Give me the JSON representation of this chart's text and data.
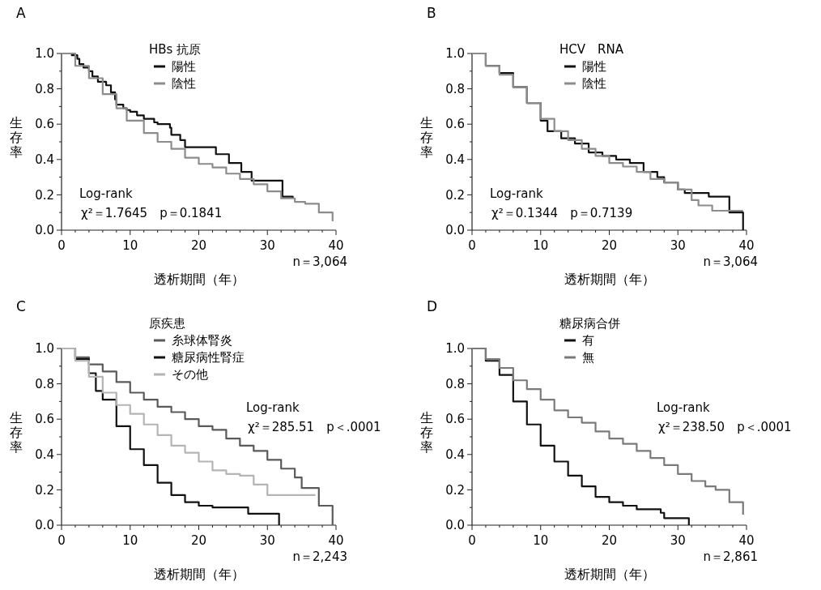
{
  "chart_data": [
    {
      "type": "step",
      "title": "A",
      "legend_title": "HBs 抗原",
      "xlabel": "透析期間（年）",
      "ylabel": "生存率",
      "xlim": [
        0,
        40
      ],
      "ylim": [
        0,
        1
      ],
      "legend": "top",
      "grid": false,
      "xticks": [
        0,
        {
          "value": 2,
          "label": null
        },
        {
          "value": 4,
          "label": null
        },
        {
          "value": 6,
          "label": null
        },
        {
          "value": 8,
          "label": null
        },
        10,
        {
          "value": 12,
          "label": null
        },
        {
          "value": 14,
          "label": null
        },
        {
          "value": 16,
          "label": null
        },
        {
          "value": 18,
          "label": null
        },
        20,
        {
          "value": 22,
          "label": null
        },
        {
          "value": 24,
          "label": null
        },
        {
          "value": 26,
          "label": null
        },
        {
          "value": 28,
          "label": null
        },
        30,
        {
          "value": 32,
          "label": null
        },
        {
          "value": 34,
          "label": null
        },
        {
          "value": 36,
          "label": null
        },
        {
          "value": 38,
          "label": null
        },
        40
      ],
      "yticks": [
        {
          "value": 0,
          "label": "0.0"
        },
        {
          "value": 0.1,
          "label": null
        },
        0.2,
        {
          "value": 0.3,
          "label": null
        },
        0.4,
        {
          "value": 0.5,
          "label": null
        },
        0.6,
        {
          "value": 0.7,
          "label": null
        },
        0.8,
        {
          "value": 0.9,
          "label": null
        },
        {
          "value": 1,
          "label": "1.0"
        }
      ],
      "annotations": [
        "Log-rank",
        "χ²＝1.7645　p＝0.1841",
        "n＝3,064"
      ],
      "series": [
        {
          "name": "陽性",
          "color": "#111111",
          "x": [
            0,
            1.5,
            2.3,
            2.6,
            3.2,
            4,
            4.5,
            5.3,
            6.5,
            7.2,
            7.8,
            8,
            9,
            9.5,
            10,
            11,
            12,
            13.5,
            14,
            15.8,
            16,
            17.3,
            18,
            22.5,
            24.4,
            26.2,
            27.7,
            32.2,
            33.7
          ],
          "values": [
            1,
            0.99,
            0.97,
            0.94,
            0.92,
            0.9,
            0.87,
            0.84,
            0.82,
            0.78,
            0.74,
            0.71,
            0.69,
            0.68,
            0.67,
            0.65,
            0.63,
            0.61,
            0.6,
            0.58,
            0.54,
            0.51,
            0.47,
            0.43,
            0.38,
            0.33,
            0.28,
            0.19,
            0.18
          ]
        },
        {
          "name": "陰性",
          "color": "#8c8c8c",
          "x": [
            0,
            2,
            4,
            6,
            8,
            9.5,
            12,
            14,
            16,
            18,
            20,
            22,
            24,
            26,
            28,
            30,
            32,
            34,
            35.5,
            37.5,
            39.5
          ],
          "values": [
            1,
            0.93,
            0.86,
            0.77,
            0.69,
            0.62,
            0.55,
            0.5,
            0.46,
            0.41,
            0.375,
            0.355,
            0.32,
            0.29,
            0.26,
            0.22,
            0.18,
            0.16,
            0.15,
            0.1,
            0.05
          ]
        }
      ]
    },
    {
      "type": "step",
      "title": "B",
      "legend_title": "HCV　RNA",
      "xlabel": "透析期間（年）",
      "ylabel": "生存率",
      "xlim": [
        0,
        40
      ],
      "ylim": [
        0,
        1
      ],
      "legend": "top",
      "grid": false,
      "xticks": [
        0,
        {
          "value": 2,
          "label": null
        },
        {
          "value": 4,
          "label": null
        },
        {
          "value": 6,
          "label": null
        },
        {
          "value": 8,
          "label": null
        },
        10,
        {
          "value": 12,
          "label": null
        },
        {
          "value": 14,
          "label": null
        },
        {
          "value": 16,
          "label": null
        },
        {
          "value": 18,
          "label": null
        },
        20,
        {
          "value": 22,
          "label": null
        },
        {
          "value": 24,
          "label": null
        },
        {
          "value": 26,
          "label": null
        },
        {
          "value": 28,
          "label": null
        },
        30,
        {
          "value": 32,
          "label": null
        },
        {
          "value": 34,
          "label": null
        },
        {
          "value": 36,
          "label": null
        },
        {
          "value": 38,
          "label": null
        },
        40
      ],
      "yticks": [
        {
          "value": 0,
          "label": "0.0"
        },
        {
          "value": 0.1,
          "label": null
        },
        0.2,
        {
          "value": 0.3,
          "label": null
        },
        0.4,
        {
          "value": 0.5,
          "label": null
        },
        0.6,
        {
          "value": 0.7,
          "label": null
        },
        0.8,
        {
          "value": 0.9,
          "label": null
        },
        {
          "value": 1,
          "label": "1.0"
        }
      ],
      "annotations": [
        "Log-rank",
        "χ²＝0.1344　p＝0.7139",
        "n＝3,064"
      ],
      "series": [
        {
          "name": "陽性",
          "color": "#111111",
          "x": [
            0,
            2,
            4,
            6,
            8,
            10,
            11,
            13,
            15,
            17,
            19,
            21,
            23,
            25,
            27,
            28,
            30,
            31,
            34.5,
            37.5,
            39.5
          ],
          "values": [
            1,
            0.93,
            0.89,
            0.81,
            0.72,
            0.62,
            0.56,
            0.52,
            0.49,
            0.44,
            0.42,
            0.4,
            0.38,
            0.33,
            0.3,
            0.27,
            0.23,
            0.21,
            0.19,
            0.1,
            0
          ]
        },
        {
          "name": "陰性",
          "color": "#8c8c8c",
          "x": [
            0,
            2,
            4,
            6,
            8,
            10,
            12,
            14,
            16,
            18,
            20,
            22,
            24,
            26,
            28,
            30,
            32,
            33,
            35,
            39.5
          ],
          "values": [
            1,
            0.93,
            0.88,
            0.81,
            0.72,
            0.63,
            0.56,
            0.51,
            0.46,
            0.42,
            0.38,
            0.36,
            0.33,
            0.29,
            0.27,
            0.23,
            0.17,
            0.14,
            0.11,
            0.11
          ]
        }
      ]
    },
    {
      "type": "step",
      "title": "C",
      "legend_title": "原疾患",
      "xlabel": "透析期間（年）",
      "ylabel": "生存率",
      "xlim": [
        0,
        40
      ],
      "ylim": [
        0,
        1
      ],
      "legend": "top",
      "grid": false,
      "xticks": [
        0,
        {
          "value": 2,
          "label": null
        },
        {
          "value": 4,
          "label": null
        },
        {
          "value": 6,
          "label": null
        },
        {
          "value": 8,
          "label": null
        },
        10,
        {
          "value": 12,
          "label": null
        },
        {
          "value": 14,
          "label": null
        },
        {
          "value": 16,
          "label": null
        },
        {
          "value": 18,
          "label": null
        },
        20,
        {
          "value": 22,
          "label": null
        },
        {
          "value": 24,
          "label": null
        },
        {
          "value": 26,
          "label": null
        },
        {
          "value": 28,
          "label": null
        },
        30,
        {
          "value": 32,
          "label": null
        },
        {
          "value": 34,
          "label": null
        },
        {
          "value": 36,
          "label": null
        },
        {
          "value": 38,
          "label": null
        },
        40
      ],
      "yticks": [
        {
          "value": 0,
          "label": "0.0"
        },
        {
          "value": 0.1,
          "label": null
        },
        0.2,
        {
          "value": 0.3,
          "label": null
        },
        0.4,
        {
          "value": 0.5,
          "label": null
        },
        0.6,
        {
          "value": 0.7,
          "label": null
        },
        0.8,
        {
          "value": 0.9,
          "label": null
        },
        {
          "value": 1,
          "label": "1.0"
        }
      ],
      "annotations": [
        "Log-rank",
        "χ²＝285.51　p＜.0001",
        "n＝2,243"
      ],
      "series": [
        {
          "name": "糸球体腎炎",
          "color": "#5a5a5a",
          "x": [
            0,
            2,
            4,
            6,
            8,
            10,
            12,
            14,
            16,
            18,
            20,
            22,
            24,
            26,
            28,
            30,
            32,
            34,
            35,
            37.5,
            39.5
          ],
          "values": [
            1,
            0.95,
            0.91,
            0.87,
            0.81,
            0.75,
            0.71,
            0.67,
            0.64,
            0.6,
            0.56,
            0.54,
            0.49,
            0.45,
            0.42,
            0.37,
            0.32,
            0.27,
            0.21,
            0.11,
            0
          ]
        },
        {
          "name": "糖尿病性腎症",
          "color": "#111111",
          "x": [
            0,
            2,
            4,
            5,
            6,
            8,
            10,
            12,
            14,
            16,
            18,
            20,
            22,
            27.2,
            31.7
          ],
          "values": [
            1,
            0.94,
            0.86,
            0.76,
            0.71,
            0.56,
            0.43,
            0.34,
            0.24,
            0.17,
            0.13,
            0.11,
            0.1,
            0.065,
            0
          ]
        },
        {
          "name": "その他",
          "color": "#b4b4b4",
          "x": [
            0,
            2,
            4,
            6,
            8,
            10,
            12,
            14,
            16,
            18,
            20,
            22,
            24,
            26,
            28,
            30,
            37
          ],
          "values": [
            1,
            0.93,
            0.84,
            0.75,
            0.68,
            0.63,
            0.57,
            0.51,
            0.45,
            0.41,
            0.36,
            0.31,
            0.29,
            0.28,
            0.23,
            0.17,
            0.17
          ]
        }
      ]
    },
    {
      "type": "step",
      "title": "D",
      "legend_title": "糖尿病合併",
      "xlabel": "透析期間（年）",
      "ylabel": "生存率",
      "xlim": [
        0,
        40
      ],
      "ylim": [
        0,
        1
      ],
      "legend": "top",
      "grid": false,
      "xticks": [
        0,
        {
          "value": 2,
          "label": null
        },
        {
          "value": 4,
          "label": null
        },
        {
          "value": 6,
          "label": null
        },
        {
          "value": 8,
          "label": null
        },
        10,
        {
          "value": 12,
          "label": null
        },
        {
          "value": 14,
          "label": null
        },
        {
          "value": 16,
          "label": null
        },
        {
          "value": 18,
          "label": null
        },
        20,
        {
          "value": 22,
          "label": null
        },
        {
          "value": 24,
          "label": null
        },
        {
          "value": 26,
          "label": null
        },
        {
          "value": 28,
          "label": null
        },
        30,
        {
          "value": 32,
          "label": null
        },
        {
          "value": 34,
          "label": null
        },
        {
          "value": 36,
          "label": null
        },
        {
          "value": 38,
          "label": null
        },
        40
      ],
      "yticks": [
        {
          "value": 0,
          "label": "0.0"
        },
        {
          "value": 0.1,
          "label": null
        },
        0.2,
        {
          "value": 0.3,
          "label": null
        },
        0.4,
        {
          "value": 0.5,
          "label": null
        },
        0.6,
        {
          "value": 0.7,
          "label": null
        },
        0.8,
        {
          "value": 0.9,
          "label": null
        },
        {
          "value": 1,
          "label": "1.0"
        }
      ],
      "annotations": [
        "Log-rank",
        "χ²＝238.50　p＜.0001",
        "n＝2,861"
      ],
      "series": [
        {
          "name": "有",
          "color": "#111111",
          "x": [
            0,
            2,
            4,
            6,
            8,
            10,
            12,
            14,
            16,
            18,
            20,
            22,
            24,
            27.5,
            28,
            31.6
          ],
          "values": [
            1,
            0.93,
            0.85,
            0.7,
            0.57,
            0.45,
            0.36,
            0.28,
            0.22,
            0.16,
            0.13,
            0.11,
            0.09,
            0.07,
            0.04,
            0
          ]
        },
        {
          "name": "無",
          "color": "#7a7a7a",
          "x": [
            0,
            2,
            4,
            6,
            8,
            10,
            12,
            14,
            16,
            18,
            20,
            22,
            24,
            26,
            28,
            30,
            32,
            34,
            35.5,
            37.5,
            39,
            39.5
          ],
          "values": [
            1,
            0.94,
            0.89,
            0.82,
            0.77,
            0.71,
            0.65,
            0.61,
            0.58,
            0.53,
            0.49,
            0.46,
            0.42,
            0.38,
            0.34,
            0.29,
            0.25,
            0.22,
            0.2,
            0.13,
            0.13,
            0.06
          ]
        }
      ]
    }
  ]
}
